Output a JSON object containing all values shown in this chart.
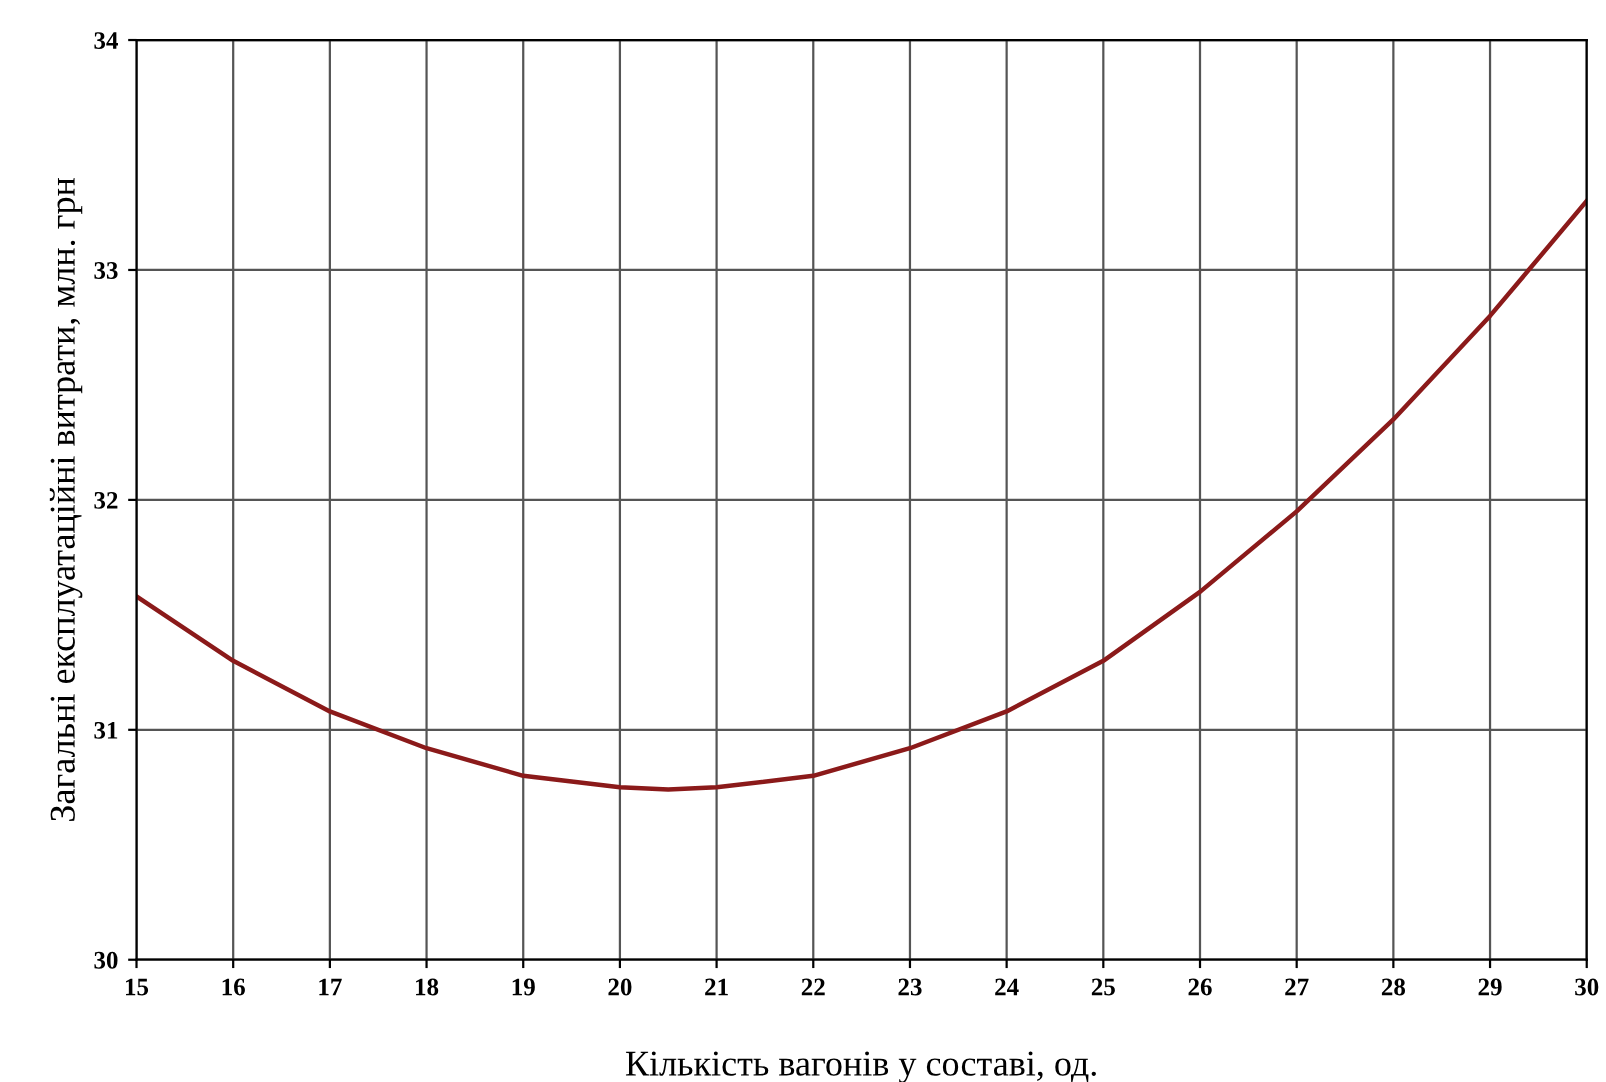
{
  "chart_data": {
    "type": "line",
    "xlabel": "Кількість вагонів у составі, од.",
    "ylabel": "Загальні експлуатаційні витрати, млн. грн",
    "x": [
      15,
      16,
      17,
      18,
      19,
      20,
      20.5,
      21,
      22,
      23,
      24,
      25,
      26,
      27,
      28,
      29,
      30
    ],
    "series": [
      {
        "color": "#8b1a1a",
        "values": [
          31.58,
          31.3,
          31.08,
          30.92,
          30.8,
          30.75,
          30.74,
          30.75,
          30.8,
          30.92,
          31.08,
          31.3,
          31.6,
          31.95,
          32.35,
          32.8,
          33.3
        ]
      }
    ],
    "xlim": [
      15,
      30
    ],
    "ylim": [
      30,
      34
    ],
    "xticks": [
      15,
      16,
      17,
      18,
      19,
      20,
      21,
      22,
      23,
      24,
      25,
      26,
      27,
      28,
      29,
      30
    ],
    "yticks": [
      30,
      31,
      32,
      33,
      34
    ],
    "grid": true
  }
}
